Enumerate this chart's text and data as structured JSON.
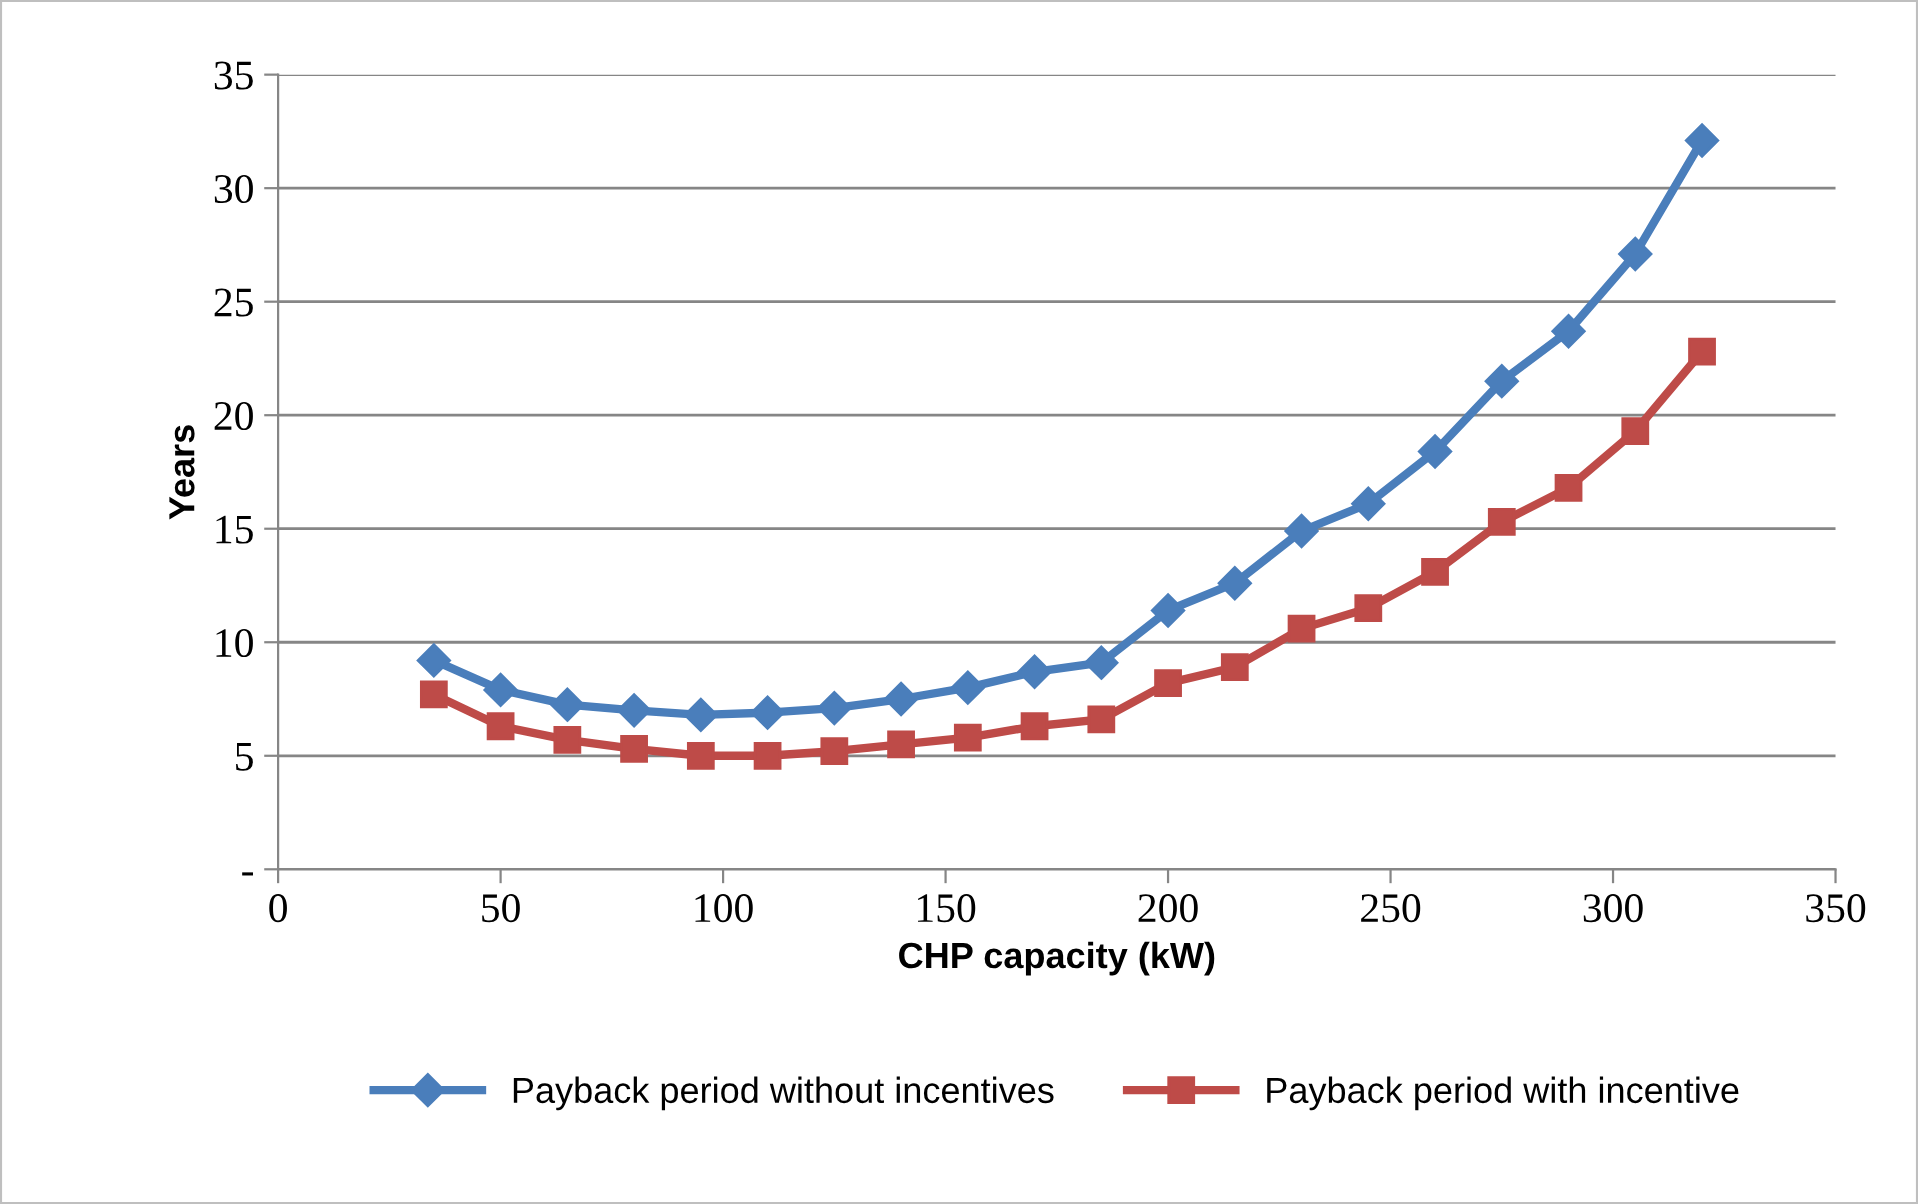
{
  "chart_data": {
    "type": "line",
    "xlabel": "CHP capacity (kW)",
    "ylabel": "Years",
    "x": [
      35,
      50,
      65,
      80,
      95,
      110,
      125,
      140,
      155,
      170,
      185,
      200,
      215,
      230,
      245,
      260,
      275,
      290,
      305,
      320
    ],
    "series": [
      {
        "name": "Payback period without incentives",
        "color": "#4a7ebb",
        "marker": "diamond",
        "values": [
          9.2,
          7.9,
          7.25,
          7.0,
          6.8,
          6.9,
          7.1,
          7.5,
          8.0,
          8.7,
          9.1,
          11.4,
          12.6,
          14.9,
          16.1,
          18.4,
          21.5,
          23.7,
          27.1,
          32.1
        ]
      },
      {
        "name": "Payback period with incentive",
        "color": "#be4b48",
        "marker": "square",
        "values": [
          7.7,
          6.3,
          5.7,
          5.3,
          5.0,
          5.0,
          5.2,
          5.5,
          5.8,
          6.3,
          6.6,
          8.2,
          8.9,
          10.6,
          11.5,
          13.1,
          15.3,
          16.8,
          19.3,
          22.8
        ]
      }
    ],
    "xlim": [
      0,
      350
    ],
    "xticks": [
      0,
      50,
      100,
      150,
      200,
      250,
      300,
      350
    ],
    "ylim": [
      0,
      35
    ],
    "yticks": [
      {
        "value": 0,
        "label": "-"
      },
      5,
      10,
      15,
      20,
      25,
      30,
      35
    ],
    "grid": "y",
    "legend": "bottom",
    "line_style": "solid"
  }
}
